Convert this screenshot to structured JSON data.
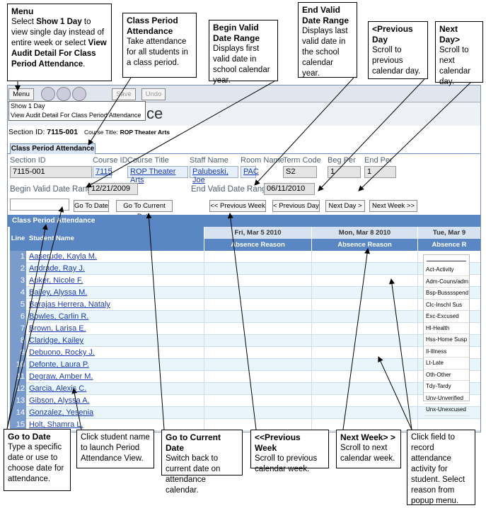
{
  "callouts": [
    {
      "title": "Menu",
      "body": [
        "Select ",
        "Show 1 Day",
        " to view single day instead of entire week or select ",
        "View Audit Detail For Class Period Attendance",
        "."
      ]
    },
    {
      "title": "Class Period Attendance",
      "body": [
        "Take attendance for all students in a class period."
      ]
    },
    {
      "title": "Begin Valid Date Range",
      "body": [
        "Displays first valid date in school calendar year."
      ]
    },
    {
      "title": "End Valid Date Range",
      "body": [
        "Displays last valid date in the school calendar year."
      ]
    },
    {
      "title": "<Previous Day",
      "body": [
        "Scroll to previous calendar day."
      ]
    },
    {
      "title": "Next Day>",
      "body": [
        "Scroll to next calendar day."
      ]
    },
    {
      "title": "Go to Date",
      "body": [
        "Type a specific date or use  to choose date for attendance."
      ]
    },
    {
      "body": [
        "Click student name to launch Period Attendance View."
      ]
    },
    {
      "title": "Go to Current Date",
      "body": [
        "Switch back to current date on attendance calendar."
      ]
    },
    {
      "title": "<<Previous Week",
      "body": [
        "Scroll to previous calendar week."
      ]
    },
    {
      "title": "Next Week> >",
      "body": [
        "Scroll to next calendar week."
      ]
    },
    {
      "body": [
        "Click field to record attendance activity for student. Select reason from popup menu."
      ]
    }
  ],
  "toolbar": {
    "menu": "Menu",
    "save": "Save",
    "undo": "Undo"
  },
  "menu_items": [
    "Show 1 Day",
    "View Audit Detail For Class Period Attendance"
  ],
  "title_fragment": "ce",
  "section": {
    "label": "Section ID:",
    "id": "7115-001",
    "course_label": "Course Title:",
    "course": "ROP Theater Arts"
  },
  "tab": "Class Period Attendance",
  "fields": [
    {
      "label": "Section ID",
      "value": "7115-001"
    },
    {
      "label": "Course ID",
      "value": "7115"
    },
    {
      "label": "Course Title",
      "value": "ROP Theater Arts"
    },
    {
      "label": "Staff Name",
      "value": "Palubeski, Joe"
    },
    {
      "label": "Room Name",
      "value": "PAC"
    },
    {
      "label": "Term Code",
      "value": "S2"
    },
    {
      "label": "Beg Per",
      "value": "1"
    },
    {
      "label": "End Per",
      "value": "1"
    }
  ],
  "begin": {
    "label": "Begin Valid Date Range",
    "value": "12/21/2009"
  },
  "end": {
    "label": "End Valid Date Range",
    "value": "06/11/2010"
  },
  "buttons": [
    "Go To Date",
    "Go To Current Date",
    "<< Previous Week",
    "< Previous Day",
    "Next Day >",
    "Next Week >>"
  ],
  "grid": {
    "title": "Class Period Attendance",
    "line": "Line",
    "name": "Student Name",
    "days": [
      {
        "date": "Fri, Mar 5 2010",
        "sub": "Absence Reason"
      },
      {
        "date": "Mon, Mar 8 2010",
        "sub": "Absence Reason"
      },
      {
        "date": "Tue, Mar 9",
        "sub": "Absence R"
      }
    ],
    "students": [
      "Aaserude, Kayla M.",
      "Andrade, Ray J.",
      "Auker, Nicole F.",
      "Bailey, Alyssa M.",
      "Barajas Herrera, Nataly",
      "Bowles, Carlin R.",
      "Brown, Larisa E.",
      "Claridge, Kailey",
      "Debuono, Rocky J.",
      "Defonte, Laura P.",
      "Degraw, Amber M.",
      "Garcia, Alexis C.",
      "Gibson, Alyssa A.",
      "Gonzalez, Yesenia",
      "Holt, Shamra L."
    ]
  },
  "reasons": [
    "Act-Activity",
    "Adm-Couns/adm",
    "Bsp-Busssspend",
    "Clc-Inschl Sus",
    "Exc-Excused",
    "Hl-Health",
    "Hss-Home Susp",
    "Il-Illness",
    "Lt-Late",
    "Oth-Other",
    "Tdy-Tardy",
    "Unv-Unverified",
    "Unx-Unexcused"
  ]
}
